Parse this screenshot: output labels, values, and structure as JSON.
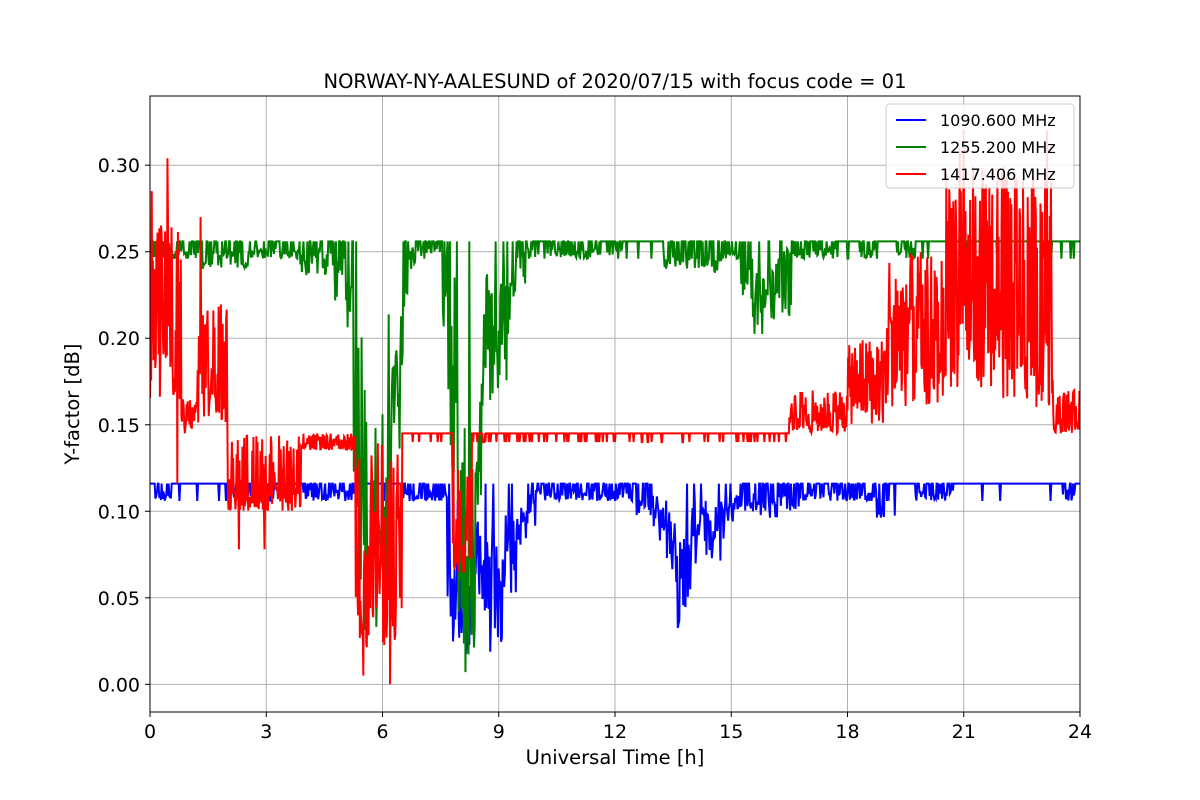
{
  "chart_data": {
    "type": "line",
    "title": "NORWAY-NY-AALESUND of 2020/07/15 with focus code = 01",
    "xlabel": "Universal Time [h]",
    "ylabel": "Y-factor [dB]",
    "xlim": [
      0,
      24
    ],
    "ylim": [
      -0.016,
      0.34
    ],
    "xticks": [
      0,
      3,
      6,
      9,
      12,
      15,
      18,
      21,
      24
    ],
    "xtick_labels": [
      "0",
      "3",
      "6",
      "9",
      "12",
      "15",
      "18",
      "21",
      "24"
    ],
    "yticks": [
      0.0,
      0.05,
      0.1,
      0.15,
      0.2,
      0.25,
      0.3
    ],
    "ytick_labels": [
      "0.00",
      "0.05",
      "0.10",
      "0.15",
      "0.20",
      "0.25",
      "0.30"
    ],
    "grid": true,
    "legend_position": "top-right",
    "series": [
      {
        "name": "1090.600 MHz",
        "color": "#0000ff",
        "baseline": 0.116,
        "dips": [
          [
            0.3,
            0.106
          ],
          [
            2.4,
            0.106
          ],
          [
            3.0,
            0.106
          ],
          [
            4.2,
            0.106
          ],
          [
            4.6,
            0.106
          ],
          [
            5.1,
            0.106
          ],
          [
            6.7,
            0.106
          ],
          [
            7.1,
            0.106
          ],
          [
            7.4,
            0.106
          ],
          [
            7.7,
            0.106
          ],
          [
            7.9,
            0.04
          ],
          [
            8.0,
            0.02
          ],
          [
            8.2,
            0.012
          ],
          [
            8.4,
            0.05
          ],
          [
            8.6,
            0.07
          ],
          [
            8.8,
            0.03
          ],
          [
            8.9,
            0.0
          ],
          [
            9.0,
            0.06
          ],
          [
            9.2,
            0.05
          ],
          [
            9.3,
            0.07
          ],
          [
            9.5,
            0.08
          ],
          [
            9.7,
            0.09
          ],
          [
            10.0,
            0.106
          ],
          [
            10.5,
            0.106
          ],
          [
            11.0,
            0.106
          ],
          [
            11.4,
            0.106
          ],
          [
            11.8,
            0.106
          ],
          [
            12.2,
            0.106
          ],
          [
            12.8,
            0.096
          ],
          [
            13.0,
            0.1
          ],
          [
            13.2,
            0.09
          ],
          [
            13.4,
            0.08
          ],
          [
            13.5,
            0.07
          ],
          [
            13.6,
            0.06
          ],
          [
            13.7,
            0.05
          ],
          [
            13.8,
            0.03
          ],
          [
            13.9,
            0.065
          ],
          [
            14.0,
            0.08
          ],
          [
            14.2,
            0.09
          ],
          [
            14.4,
            0.08
          ],
          [
            14.6,
            0.068
          ],
          [
            14.8,
            0.09
          ],
          [
            15.0,
            0.1
          ],
          [
            15.3,
            0.1
          ],
          [
            15.6,
            0.1
          ],
          [
            16.0,
            0.096
          ],
          [
            16.5,
            0.1
          ],
          [
            17.0,
            0.106
          ],
          [
            17.5,
            0.106
          ],
          [
            18.0,
            0.106
          ],
          [
            18.5,
            0.106
          ],
          [
            19.0,
            0.096
          ],
          [
            20.0,
            0.106
          ],
          [
            20.5,
            0.106
          ],
          [
            23.8,
            0.106
          ]
        ]
      },
      {
        "name": "1255.200 MHz",
        "color": "#008000",
        "baseline": 0.256,
        "dips": [
          [
            0.2,
            0.246
          ],
          [
            0.5,
            0.246
          ],
          [
            1.0,
            0.246
          ],
          [
            1.6,
            0.24
          ],
          [
            2.0,
            0.246
          ],
          [
            2.3,
            0.24
          ],
          [
            2.8,
            0.246
          ],
          [
            3.0,
            0.246
          ],
          [
            3.6,
            0.246
          ],
          [
            4.1,
            0.236
          ],
          [
            4.4,
            0.246
          ],
          [
            4.7,
            0.236
          ],
          [
            5.0,
            0.22
          ],
          [
            5.3,
            0.2
          ],
          [
            5.4,
            0.17
          ],
          [
            5.5,
            0.1
          ],
          [
            5.6,
            0.06
          ],
          [
            5.7,
            0.04
          ],
          [
            5.8,
            0.03
          ],
          [
            5.9,
            0.06
          ],
          [
            6.0,
            0.05
          ],
          [
            6.1,
            0.09
          ],
          [
            6.2,
            0.12
          ],
          [
            6.3,
            0.15
          ],
          [
            6.4,
            0.18
          ],
          [
            6.6,
            0.24
          ],
          [
            7.0,
            0.246
          ],
          [
            7.5,
            0.246
          ],
          [
            7.8,
            0.2
          ],
          [
            7.9,
            0.15
          ],
          [
            8.0,
            0.1
          ],
          [
            8.1,
            0.06
          ],
          [
            8.2,
            0.03
          ],
          [
            8.3,
            0.0
          ],
          [
            8.4,
            0.12
          ],
          [
            8.5,
            0.2
          ],
          [
            8.6,
            0.22
          ],
          [
            8.8,
            0.18
          ],
          [
            9.0,
            0.16
          ],
          [
            9.2,
            0.21
          ],
          [
            9.5,
            0.23
          ],
          [
            9.8,
            0.246
          ],
          [
            10.5,
            0.246
          ],
          [
            11.0,
            0.246
          ],
          [
            11.5,
            0.246
          ],
          [
            12.0,
            0.246
          ],
          [
            13.5,
            0.24
          ],
          [
            14.0,
            0.24
          ],
          [
            14.5,
            0.236
          ],
          [
            15.0,
            0.246
          ],
          [
            15.5,
            0.22
          ],
          [
            15.8,
            0.2
          ],
          [
            16.0,
            0.22
          ],
          [
            16.3,
            0.21
          ],
          [
            16.6,
            0.246
          ],
          [
            17.0,
            0.246
          ],
          [
            17.5,
            0.246
          ],
          [
            18.5,
            0.246
          ],
          [
            19.5,
            0.246
          ]
        ]
      },
      {
        "name": "1417.406 MHz",
        "color": "#ff0000",
        "segments": [
          {
            "t0": 0.0,
            "t1": 0.8,
            "low": 0.16,
            "high": 0.27
          },
          {
            "t0": 0.8,
            "t1": 1.2,
            "low": 0.145,
            "high": 0.165
          },
          {
            "t0": 1.2,
            "t1": 2.0,
            "low": 0.15,
            "high": 0.22
          },
          {
            "t0": 2.0,
            "t1": 3.9,
            "low": 0.1,
            "high": 0.145
          },
          {
            "t0": 3.9,
            "t1": 5.3,
            "low": 0.135,
            "high": 0.145
          },
          {
            "t0": 5.3,
            "t1": 6.5,
            "low": 0.02,
            "high": 0.14
          },
          {
            "t0": 6.5,
            "t1": 7.8,
            "low": 0.14,
            "high": 0.145
          },
          {
            "t0": 7.8,
            "t1": 8.3,
            "low": 0.06,
            "high": 0.14
          },
          {
            "t0": 8.3,
            "t1": 16.5,
            "low": 0.14,
            "high": 0.145
          },
          {
            "t0": 16.5,
            "t1": 18.0,
            "low": 0.145,
            "high": 0.17
          },
          {
            "t0": 18.0,
            "t1": 19.0,
            "low": 0.15,
            "high": 0.2
          },
          {
            "t0": 19.0,
            "t1": 20.5,
            "low": 0.16,
            "high": 0.25
          },
          {
            "t0": 20.5,
            "t1": 22.0,
            "low": 0.17,
            "high": 0.3
          },
          {
            "t0": 22.0,
            "t1": 23.3,
            "low": 0.16,
            "high": 0.3
          },
          {
            "t0": 23.3,
            "t1": 24.0,
            "low": 0.145,
            "high": 0.17
          }
        ],
        "spikes": [
          [
            0.05,
            0.285
          ],
          [
            0.45,
            0.304
          ],
          [
            0.7,
            0.116
          ],
          [
            1.3,
            0.27
          ],
          [
            2.3,
            0.078
          ],
          [
            2.95,
            0.078
          ],
          [
            5.5,
            0.005
          ],
          [
            6.2,
            0.0
          ],
          [
            20.9,
            0.31
          ],
          [
            21.0,
            0.32
          ],
          [
            23.15,
            0.32
          ],
          [
            23.25,
            0.29
          ]
        ]
      }
    ]
  }
}
